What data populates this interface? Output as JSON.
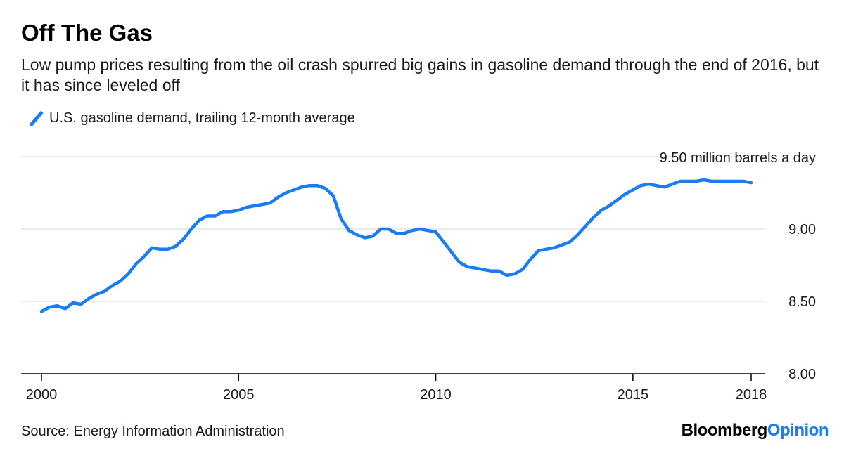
{
  "header": {
    "title": "Off The Gas",
    "subtitle": "Low pump prices resulting from the oil crash spurred big gains in gasoline demand through the end of 2016, but it has since leveled off"
  },
  "footer": {
    "source": "Source: Energy Information Administration",
    "brand_main": "Bloomberg",
    "brand_accent": "Opinion"
  },
  "colors": {
    "series": "#1a7cf2",
    "grid": "#e6e6e6",
    "axis": "#000000"
  },
  "chart_data": {
    "type": "line",
    "title": "Off The Gas",
    "xlabel": "",
    "ylabel": "",
    "unit_label": "9.50 million barrels a day",
    "xlim": [
      2000,
      2018
    ],
    "ylim": [
      8.0,
      9.5
    ],
    "x_ticks": [
      2000,
      2005,
      2010,
      2015,
      2018
    ],
    "x_tick_labels": [
      "2000",
      "2005",
      "2010",
      "2015",
      "2018"
    ],
    "y_ticks": [
      8.0,
      8.5,
      9.0,
      9.5
    ],
    "y_tick_labels": [
      "8.00",
      "8.50",
      "9.00",
      "9.50"
    ],
    "grid": true,
    "legend": "top-left",
    "series": [
      {
        "name": "U.S. gasoline demand, trailing 12-month average",
        "x": [
          2000.0,
          2000.2,
          2000.4,
          2000.6,
          2000.8,
          2001.0,
          2001.2,
          2001.4,
          2001.6,
          2001.8,
          2002.0,
          2002.2,
          2002.4,
          2002.6,
          2002.8,
          2003.0,
          2003.2,
          2003.4,
          2003.6,
          2003.8,
          2004.0,
          2004.2,
          2004.4,
          2004.6,
          2004.8,
          2005.0,
          2005.2,
          2005.4,
          2005.6,
          2005.8,
          2006.0,
          2006.2,
          2006.4,
          2006.6,
          2006.8,
          2007.0,
          2007.2,
          2007.4,
          2007.6,
          2007.8,
          2008.0,
          2008.2,
          2008.4,
          2008.6,
          2008.8,
          2009.0,
          2009.2,
          2009.4,
          2009.6,
          2009.8,
          2010.0,
          2010.2,
          2010.4,
          2010.6,
          2010.8,
          2011.0,
          2011.2,
          2011.4,
          2011.6,
          2011.8,
          2012.0,
          2012.2,
          2012.4,
          2012.6,
          2012.8,
          2013.0,
          2013.2,
          2013.4,
          2013.6,
          2013.8,
          2014.0,
          2014.2,
          2014.4,
          2014.6,
          2014.8,
          2015.0,
          2015.2,
          2015.4,
          2015.6,
          2015.8,
          2016.0,
          2016.2,
          2016.4,
          2016.6,
          2016.8,
          2017.0,
          2017.2,
          2017.4,
          2017.6,
          2017.8,
          2018.0
        ],
        "values": [
          8.43,
          8.46,
          8.47,
          8.45,
          8.49,
          8.48,
          8.52,
          8.55,
          8.57,
          8.61,
          8.64,
          8.69,
          8.76,
          8.81,
          8.87,
          8.86,
          8.86,
          8.88,
          8.93,
          9.0,
          9.06,
          9.09,
          9.09,
          9.12,
          9.12,
          9.13,
          9.15,
          9.16,
          9.17,
          9.18,
          9.22,
          9.25,
          9.27,
          9.29,
          9.3,
          9.3,
          9.28,
          9.23,
          9.07,
          8.99,
          8.96,
          8.94,
          8.95,
          9.0,
          9.0,
          8.97,
          8.97,
          8.99,
          9.0,
          8.99,
          8.98,
          8.91,
          8.84,
          8.77,
          8.74,
          8.73,
          8.72,
          8.71,
          8.71,
          8.68,
          8.69,
          8.72,
          8.79,
          8.85,
          8.86,
          8.87,
          8.89,
          8.91,
          8.96,
          9.02,
          9.08,
          9.13,
          9.16,
          9.2,
          9.24,
          9.27,
          9.3,
          9.31,
          9.3,
          9.29,
          9.31,
          9.33,
          9.33,
          9.33,
          9.34,
          9.33,
          9.33,
          9.33,
          9.33,
          9.33,
          9.32
        ]
      }
    ]
  }
}
